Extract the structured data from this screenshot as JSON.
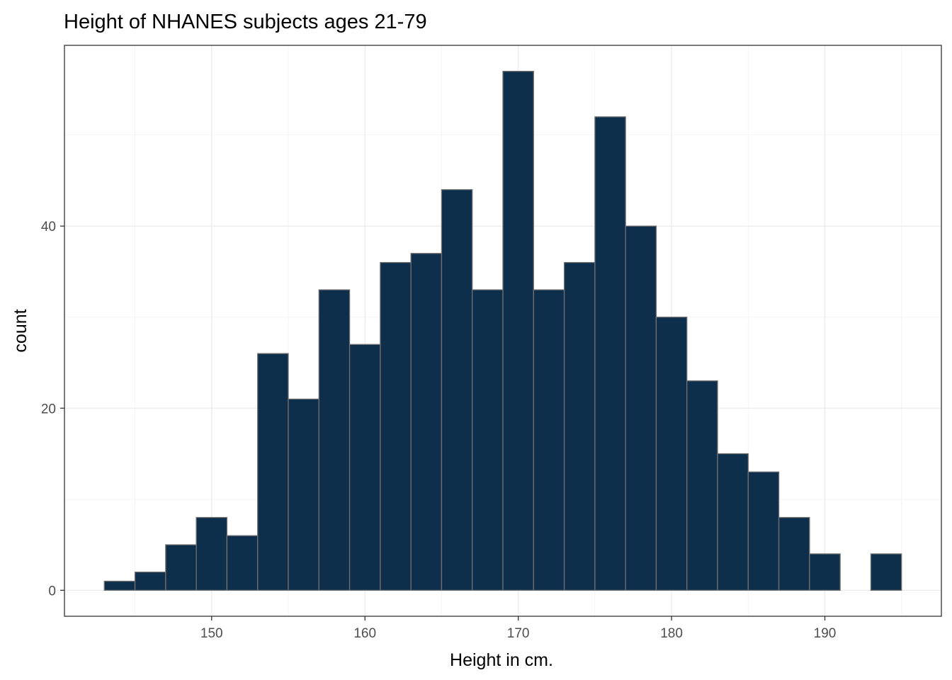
{
  "chart_data": {
    "type": "bar",
    "title": "Height of NHANES subjects ages 21-79",
    "xlabel": "Height in cm.",
    "ylabel": "count",
    "xlim": [
      140.4,
      197.6
    ],
    "ylim": [
      -2.85,
      59.85
    ],
    "x_ticks": [
      150,
      160,
      170,
      180,
      190
    ],
    "x_tick_labels": [
      "150",
      "160",
      "170",
      "180",
      "190"
    ],
    "y_ticks": [
      0,
      20,
      40
    ],
    "y_tick_labels": [
      "0",
      "20",
      "40"
    ],
    "grid": true,
    "bin_width": 2,
    "bins": [
      {
        "x0": 143,
        "x1": 145,
        "count": 1
      },
      {
        "x0": 145,
        "x1": 147,
        "count": 2
      },
      {
        "x0": 147,
        "x1": 149,
        "count": 5
      },
      {
        "x0": 149,
        "x1": 151,
        "count": 8
      },
      {
        "x0": 151,
        "x1": 153,
        "count": 6
      },
      {
        "x0": 153,
        "x1": 155,
        "count": 26
      },
      {
        "x0": 155,
        "x1": 157,
        "count": 21
      },
      {
        "x0": 157,
        "x1": 159,
        "count": 33
      },
      {
        "x0": 159,
        "x1": 161,
        "count": 27
      },
      {
        "x0": 161,
        "x1": 163,
        "count": 36
      },
      {
        "x0": 163,
        "x1": 165,
        "count": 37
      },
      {
        "x0": 165,
        "x1": 167,
        "count": 44
      },
      {
        "x0": 167,
        "x1": 169,
        "count": 33
      },
      {
        "x0": 169,
        "x1": 171,
        "count": 57
      },
      {
        "x0": 171,
        "x1": 173,
        "count": 33
      },
      {
        "x0": 173,
        "x1": 175,
        "count": 36
      },
      {
        "x0": 175,
        "x1": 177,
        "count": 52
      },
      {
        "x0": 177,
        "x1": 179,
        "count": 40
      },
      {
        "x0": 179,
        "x1": 181,
        "count": 30
      },
      {
        "x0": 181,
        "x1": 183,
        "count": 23
      },
      {
        "x0": 183,
        "x1": 185,
        "count": 15
      },
      {
        "x0": 185,
        "x1": 187,
        "count": 13
      },
      {
        "x0": 187,
        "x1": 189,
        "count": 8
      },
      {
        "x0": 189,
        "x1": 191,
        "count": 4
      },
      {
        "x0": 191,
        "x1": 193,
        "count": 0
      },
      {
        "x0": 193,
        "x1": 195,
        "count": 4
      }
    ],
    "colors": {
      "bar_fill": "#0d2f4c",
      "bar_outline": "#707070",
      "panel_border": "#333333",
      "grid_major": "#ebebeb",
      "grid_minor": "#f5f5f5"
    }
  }
}
